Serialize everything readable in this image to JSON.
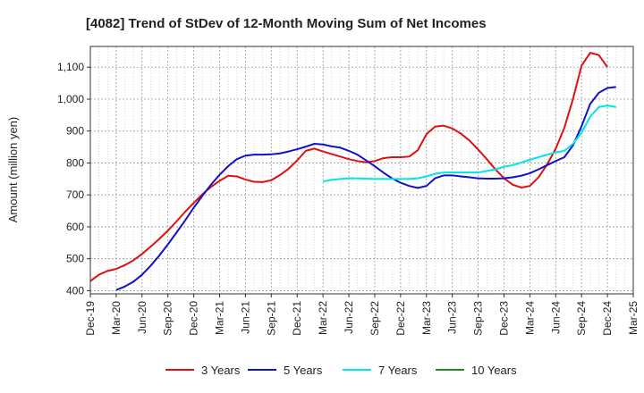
{
  "chart_data": {
    "type": "line",
    "title": "[4082]  Trend of StDev of 12-Month Moving Sum of Net Incomes",
    "ylabel": "Amount (million yen)",
    "xlabel": "",
    "ylim": [
      390,
      1165
    ],
    "y_ticks": [
      400,
      500,
      600,
      700,
      800,
      900,
      "1,000",
      "1,100"
    ],
    "y_tick_values": [
      400,
      500,
      600,
      700,
      800,
      900,
      1000,
      1100
    ],
    "x_tick_labels": [
      "Dec-19",
      "Mar-20",
      "Jun-20",
      "Sep-20",
      "Dec-20",
      "Mar-21",
      "Jun-21",
      "Sep-21",
      "Dec-21",
      "Mar-22",
      "Jun-22",
      "Sep-22",
      "Dec-22",
      "Mar-23",
      "Jun-23",
      "Sep-23",
      "Dec-23",
      "Mar-24",
      "Jun-24",
      "Sep-24",
      "Dec-24",
      "Mar-25"
    ],
    "grid": true,
    "legend_position": "bottom",
    "series": [
      {
        "name": "3 Years",
        "color": "#dd1111",
        "start_index": 0,
        "values": [
          430,
          450,
          462,
          468,
          480,
          495,
          515,
          538,
          562,
          588,
          617,
          647,
          675,
          702,
          725,
          744,
          760,
          758,
          748,
          741,
          740,
          746,
          762,
          782,
          808,
          838,
          845,
          836,
          828,
          820,
          812,
          806,
          802,
          806,
          815,
          818,
          818,
          820,
          840,
          890,
          914,
          917,
          908,
          892,
          870,
          842,
          812,
          780,
          752,
          732,
          723,
          728,
          755,
          795,
          845,
          910,
          1000,
          1105,
          1145,
          1138,
          1100
        ]
      },
      {
        "name": "5 Years",
        "color": "#1111cc",
        "start_index": 3,
        "values": [
          402,
          413,
          428,
          450,
          478,
          510,
          545,
          582,
          620,
          660,
          697,
          732,
          763,
          790,
          812,
          823,
          826,
          826,
          827,
          830,
          836,
          843,
          851,
          860,
          858,
          852,
          848,
          838,
          826,
          808,
          790,
          770,
          752,
          738,
          728,
          722,
          728,
          752,
          761,
          761,
          758,
          755,
          752,
          751,
          751,
          752,
          755,
          760,
          768,
          780,
          793,
          806,
          818,
          855,
          915,
          985,
          1020,
          1035,
          1038
        ]
      },
      {
        "name": "7 Years",
        "color": "#00e5e5",
        "start_index": 27,
        "values": [
          742,
          747,
          750,
          752,
          752,
          751,
          750,
          750,
          750,
          750,
          750,
          752,
          758,
          766,
          770,
          770,
          770,
          770,
          770,
          775,
          780,
          788,
          793,
          801,
          810,
          818,
          826,
          833,
          838,
          860,
          895,
          945,
          975,
          980,
          975
        ]
      },
      {
        "name": "10 Years",
        "color": "#228822",
        "start_index": 0,
        "values": []
      }
    ]
  }
}
